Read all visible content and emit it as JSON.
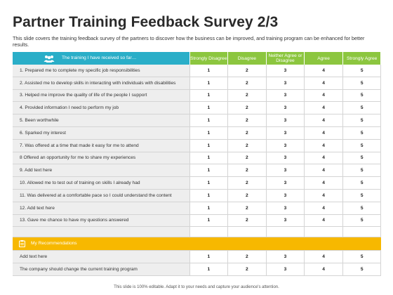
{
  "slide": {
    "title": "Partner Training Feedback Survey 2/3",
    "subtitle": "This slide covers the training feedback survey of the partners to discover how the business can be improved, and training program can be enhanced for better results.",
    "footer": "This slide is 100% editable. Adapt it to your needs and capture your audience's attention."
  },
  "table": {
    "header_label": "The training I have received so far…",
    "header_icon": "group-icon",
    "header_color": "#2aaec8",
    "rating_color": "#8cc63f",
    "columns": [
      "Strongly Disagree",
      "Disagree",
      "Neither Agree or Disagree",
      "Agree",
      "Strongly Agree"
    ],
    "items": [
      {
        "text": "1. Prepared me to complete my specific job responsibilities",
        "scale": [
          "1",
          "2",
          "3",
          "4",
          "5"
        ]
      },
      {
        "text": "2. Assisted me to develop skills in interacting with individuals with disabilities",
        "scale": [
          "1",
          "2",
          "3",
          "4",
          "5"
        ]
      },
      {
        "text": "3. Helped me improve the quality of life of the people I support",
        "scale": [
          "1",
          "2",
          "3",
          "4",
          "5"
        ]
      },
      {
        "text": "4. Provided information I need to perform my job",
        "scale": [
          "1",
          "2",
          "3",
          "4",
          "5"
        ]
      },
      {
        "text": "5. Been worthwhile",
        "scale": [
          "1",
          "2",
          "3",
          "4",
          "5"
        ]
      },
      {
        "text": "6. Sparked my interest",
        "scale": [
          "1",
          "2",
          "3",
          "4",
          "5"
        ]
      },
      {
        "text": "7. Was offered at a time that made it easy for me to attend",
        "scale": [
          "1",
          "2",
          "3",
          "4",
          "5"
        ]
      },
      {
        "text": "8 Offered an opportunity for me to share my experiences",
        "scale": [
          "1",
          "2",
          "3",
          "4",
          "5"
        ]
      },
      {
        "text": "9. Add text here",
        "scale": [
          "1",
          "2",
          "3",
          "4",
          "5"
        ]
      },
      {
        "text": "10. Allowed me to test out of training on skills I already had",
        "scale": [
          "1",
          "2",
          "3",
          "4",
          "5"
        ]
      },
      {
        "text": "11. Was delivered at a comfortable pace so I could understand the content",
        "scale": [
          "1",
          "2",
          "3",
          "4",
          "5"
        ]
      },
      {
        "text": "12. Add text here",
        "scale": [
          "1",
          "2",
          "3",
          "4",
          "5"
        ]
      },
      {
        "text": "13. Gave me chance to have my questions answered",
        "scale": [
          "1",
          "2",
          "3",
          "4",
          "5"
        ]
      }
    ]
  },
  "recommendations": {
    "label": "My Recommendations",
    "icon": "clipboard-icon",
    "color": "#f7b800",
    "items": [
      {
        "text": "Add text here",
        "scale": [
          "1",
          "2",
          "3",
          "4",
          "5"
        ]
      },
      {
        "text": "The company should change the current training program",
        "scale": [
          "1",
          "2",
          "3",
          "4",
          "5"
        ]
      }
    ]
  }
}
